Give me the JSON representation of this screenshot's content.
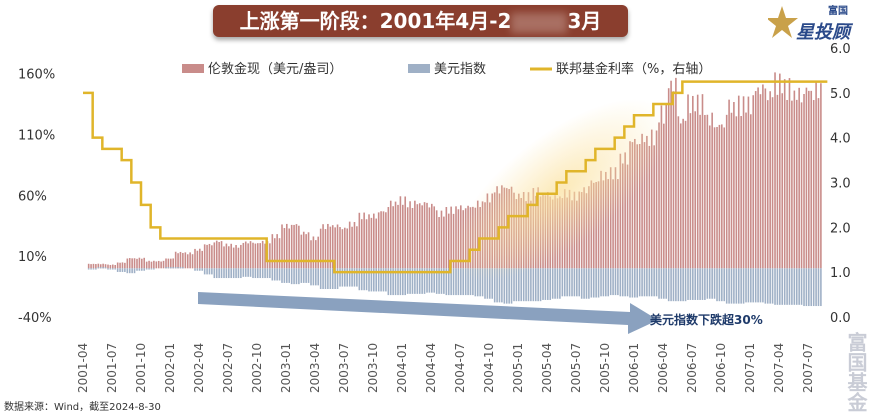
{
  "title": {
    "left": "上涨第一阶段：2001年4月-2",
    "right": "3月"
  },
  "logo": {
    "top": "富国",
    "main": "星投顾"
  },
  "source": "数据来源：Wind，截至2024-8-30",
  "watermark": "富国基金",
  "annotation": "美元指数下跌超30%",
  "colors": {
    "gold": "#c98c8a",
    "usd": "#9fb0c6",
    "fed": "#e0b52a",
    "title_bg": "#8a3e2e",
    "arrow": "#7d97b8"
  },
  "chart_data": {
    "type": "bar+line",
    "x_ticks": [
      "2001-04",
      "2001-07",
      "2001-10",
      "2002-01",
      "2002-04",
      "2002-07",
      "2002-10",
      "2003-01",
      "2003-04",
      "2003-07",
      "2003-10",
      "2004-01",
      "2004-04",
      "2004-07",
      "2004-10",
      "2005-01",
      "2005-04",
      "2005-07",
      "2005-10",
      "2006-01",
      "2006-04",
      "2006-07",
      "2006-10",
      "2007-01",
      "2007-04",
      "2007-07"
    ],
    "x_start": "2001-04",
    "left_axis": {
      "ticks": [
        "160%",
        "110%",
        "60%",
        "10%",
        "-40%"
      ],
      "tick_values": [
        160,
        110,
        60,
        10,
        -40
      ],
      "ylim": [
        -40,
        181
      ]
    },
    "right_axis": {
      "ticks": [
        "6.0",
        "5.0",
        "4.0",
        "3.0",
        "2.0",
        "1.0",
        "0.0"
      ],
      "tick_values": [
        6,
        5,
        4,
        3,
        2,
        1,
        0
      ],
      "ylim": [
        0,
        6
      ]
    },
    "legend_position": "top",
    "series": [
      {
        "name": "伦敦金现（美元/盎司）",
        "type": "bar",
        "axis": "left",
        "values": [
          0,
          3.8,
          3.8,
          3.1,
          5,
          8.8,
          8.8,
          6.2,
          6.2,
          8.5,
          13.8,
          13.1,
          16.2,
          20.8,
          23.5,
          20.4,
          19.2,
          22.7,
          21.9,
          22.7,
          28.1,
          36.9,
          38.1,
          30.8,
          26.2,
          36.5,
          36.9,
          35,
          38.5,
          45.8,
          45.8,
          49.6,
          56.5,
          59.2,
          55.8,
          56.2,
          55,
          47.7,
          50.8,
          53.1,
          53.8,
          56.2,
          61.5,
          68.8,
          70,
          63.1,
          62.7,
          66.9,
          65,
          62.3,
          65.4,
          63.1,
          68.5,
          75.4,
          80.8,
          83.1,
          96.2,
          111.2,
          113.5,
          114.2,
          134.6,
          160,
          129.2,
          143.5,
          143.1,
          130,
          125,
          141.2,
          141.9,
          142.7,
          155.8,
          151.5,
          161.2,
          156.5,
          151.9,
          155.8,
          155.8
        ]
      },
      {
        "name": "美元指数",
        "type": "bar",
        "axis": "left",
        "values": [
          0,
          -1,
          1,
          -1,
          -3,
          -4,
          -2,
          -1,
          0,
          1,
          1,
          0,
          -2,
          -5,
          -8,
          -8,
          -8,
          -7,
          -8,
          -8,
          -10,
          -12,
          -13,
          -12,
          -14,
          -17,
          -17,
          -15,
          -15,
          -18,
          -19,
          -19,
          -22,
          -22,
          -21,
          -21,
          -20,
          -21,
          -22,
          -22,
          -22,
          -23,
          -25,
          -28,
          -29,
          -27,
          -27,
          -27,
          -26,
          -25,
          -23,
          -23,
          -25,
          -24,
          -23,
          -22,
          -23,
          -24,
          -23,
          -23,
          -25,
          -27,
          -27,
          -26,
          -26,
          -25,
          -27,
          -29,
          -29,
          -28,
          -28,
          -29,
          -30,
          -30,
          -30,
          -31,
          -31
        ]
      },
      {
        "name": "联邦基金利率（%，右轴）",
        "type": "step-line",
        "axis": "right",
        "values": [
          5.0,
          4.0,
          3.75,
          3.75,
          3.5,
          3.0,
          2.5,
          2.0,
          1.75,
          1.75,
          1.75,
          1.75,
          1.75,
          1.75,
          1.75,
          1.75,
          1.75,
          1.75,
          1.75,
          1.25,
          1.25,
          1.25,
          1.25,
          1.25,
          1.25,
          1.25,
          1.0,
          1.0,
          1.0,
          1.0,
          1.0,
          1.0,
          1.0,
          1.0,
          1.0,
          1.0,
          1.0,
          1.0,
          1.25,
          1.25,
          1.5,
          1.75,
          1.75,
          2.0,
          2.25,
          2.25,
          2.5,
          2.75,
          2.75,
          3.0,
          3.25,
          3.25,
          3.5,
          3.75,
          3.75,
          4.0,
          4.25,
          4.5,
          4.5,
          4.75,
          4.75,
          5.0,
          5.25,
          5.25,
          5.25,
          5.25,
          5.25,
          5.25,
          5.25,
          5.25,
          5.25,
          5.25,
          5.25,
          5.25,
          5.25,
          5.25,
          5.25
        ]
      }
    ]
  }
}
